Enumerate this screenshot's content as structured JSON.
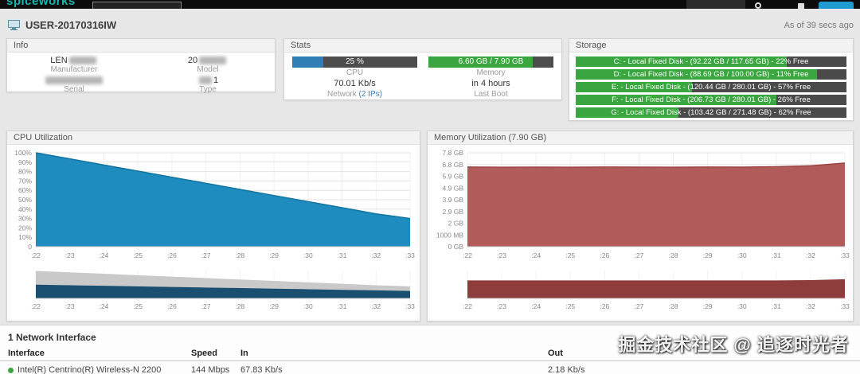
{
  "topbar": {
    "logo_text": "spiceworks",
    "search_text": ""
  },
  "header": {
    "device_name": "USER-20170316IW",
    "as_of": "As of 39 secs ago"
  },
  "info": {
    "title": "Info",
    "fields": [
      {
        "value": "LEN",
        "label": "Manufacturer"
      },
      {
        "value": "20",
        "label": "Model"
      },
      {
        "value": "",
        "label": "Serial"
      },
      {
        "value": "1",
        "label": "Type"
      }
    ]
  },
  "stats": {
    "title": "Stats",
    "cpu": {
      "percent": 25,
      "bar_label": "25 %",
      "label": "CPU"
    },
    "memory": {
      "percent": 83.5,
      "bar_label": "6.60 GB / 7.90 GB",
      "label": "Memory"
    },
    "network": {
      "value": "70.01 Kb/s",
      "label": "Network",
      "ips_link": "(2 IPs)"
    },
    "last_boot": {
      "value": "in 4 hours",
      "label": "Last Boot"
    }
  },
  "storage": {
    "title": "Storage",
    "used_color": "#3aa63f",
    "free_color": "#4a4a4a",
    "disks": [
      {
        "label": "C: - Local Fixed Disk - (92.22 GB / 117.65 GB) - 22% Free",
        "used_pct": 78
      },
      {
        "label": "D: - Local Fixed Disk - (88.69 GB / 100.00 GB) - 11% Free",
        "used_pct": 89
      },
      {
        "label": "E: - Local Fixed Disk - (120.44 GB / 280.01 GB) - 57% Free",
        "used_pct": 43
      },
      {
        "label": "F: - Local Fixed Disk - (206.73 GB / 280.01 GB) - 26% Free",
        "used_pct": 74
      },
      {
        "label": "G: - Local Fixed Disk - (103.42 GB / 271.48 GB) - 62% Free",
        "used_pct": 38
      }
    ]
  },
  "chart_data": [
    {
      "type": "area",
      "title": "CPU Utilization",
      "x": [
        ":22",
        ":23",
        ":24",
        ":25",
        ":26",
        ":27",
        ":28",
        ":29",
        ":30",
        ":31",
        ":32",
        ":33"
      ],
      "yticks": [
        "100%",
        "90%",
        "80%",
        "70%",
        "60%",
        "50%",
        "40%",
        "30%",
        "20%",
        "10%",
        "0"
      ],
      "ylim": [
        0,
        100
      ],
      "series": [
        {
          "name": "CPU %",
          "values": [
            100,
            93.5,
            87,
            80.5,
            74,
            67.5,
            61,
            54.5,
            48,
            41.5,
            35,
            30
          ]
        }
      ],
      "color": "#1e8cbe",
      "line_color": "#12749f",
      "grid": true,
      "legend": "none",
      "navigator": {
        "upper_values": [
          96,
          91,
          86,
          81,
          76,
          71,
          66,
          61,
          56,
          51,
          46,
          42
        ],
        "upper_color": "#c9c9c9",
        "lower_values": [
          48,
          46,
          44,
          42,
          40,
          38,
          36,
          34,
          32,
          30,
          28,
          26
        ],
        "lower_color": "#1b4f72"
      }
    },
    {
      "type": "area",
      "title": "Memory Utilization (7.90 GB)",
      "x": [
        ":22",
        ":23",
        ":24",
        ":25",
        ":26",
        ":27",
        ":28",
        ":29",
        ":30",
        ":31",
        ":32",
        ":33"
      ],
      "yticks": [
        "7.8 GB",
        "6.8 GB",
        "5.9 GB",
        "4.9 GB",
        "3.9 GB",
        "2.9 GB",
        "2 GB",
        "1000 MB",
        "0 GB"
      ],
      "ylim": [
        0,
        7.8
      ],
      "series": [
        {
          "name": "Memory Used (GB)",
          "values": [
            6.62,
            6.6,
            6.61,
            6.6,
            6.62,
            6.61,
            6.6,
            6.62,
            6.61,
            6.64,
            6.72,
            6.95
          ]
        }
      ],
      "color": "#b25b5b",
      "line_color": "#9c4545",
      "grid": true,
      "legend": "none",
      "navigator": {
        "lower_values": [
          63,
          63,
          63,
          63,
          63,
          63,
          63,
          63,
          63,
          63,
          64,
          67
        ],
        "lower_color": "#8e3c3c"
      }
    }
  ],
  "network_section": {
    "title": "1 Network Interface",
    "columns": [
      "Interface",
      "Speed",
      "In",
      "Out"
    ],
    "rows": [
      {
        "interface": "Intel(R) Centrino(R) Wireless-N 2200",
        "speed": "144 Mbps",
        "in": "67.83 Kb/s",
        "out": "2.18 Kb/s"
      }
    ]
  },
  "watermark": "掘金技术社区 @ 追逐时光者"
}
